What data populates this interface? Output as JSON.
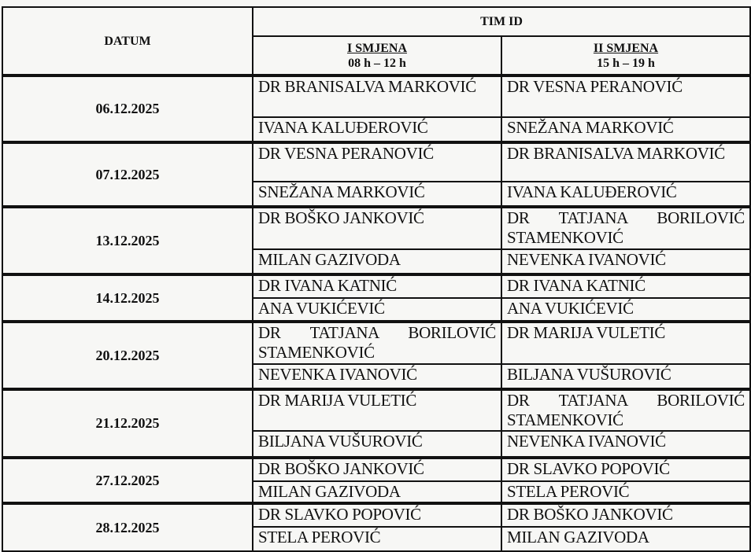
{
  "header": {
    "datum": "DATUM",
    "tim_id": "TIM ID",
    "shift1": {
      "name": "I SMJENA",
      "hours": "08 h – 12 h"
    },
    "shift2": {
      "name": "II SMJENA",
      "hours": "15 h – 19 h"
    }
  },
  "rows": [
    {
      "date": "06.12.2025",
      "shift1": [
        "DR BRANISALVA MARKOVIĆ",
        "IVANA KALUĐEROVIĆ"
      ],
      "shift2": [
        "DR VESNA PERANOVIĆ",
        "SNEŽANA MARKOVIĆ"
      ]
    },
    {
      "date": "07.12.2025",
      "shift1": [
        "DR VESNA PERANOVIĆ",
        "SNEŽANA MARKOVIĆ"
      ],
      "shift2": [
        "DR BRANISALVA MARKOVIĆ",
        "IVANA KALUĐEROVIĆ"
      ]
    },
    {
      "date": "13.12.2025",
      "shift1": [
        "DR BOŠKO JANKOVIĆ",
        "MILAN GAZIVODA"
      ],
      "shift2": [
        "DR TATJANA BORILOVIĆ STAMENKOVIĆ",
        "NEVENKA IVANOVIĆ"
      ]
    },
    {
      "date": "14.12.2025",
      "shift1": [
        "DR IVANA KATNIĆ",
        "ANA VUKIĆEVIĆ"
      ],
      "shift2": [
        "DR IVANA KATNIĆ",
        "ANA VUKIĆEVIĆ"
      ]
    },
    {
      "date": "20.12.2025",
      "shift1": [
        "DR TATJANA BORILOVIĆ STAMENKOVIĆ",
        "NEVENKA IVANOVIĆ"
      ],
      "shift2": [
        "DR MARIJA VULETIĆ",
        "BILJANA VUŠUROVIĆ"
      ]
    },
    {
      "date": "21.12.2025",
      "shift1": [
        "DR MARIJA VULETIĆ",
        "BILJANA VUŠUROVIĆ"
      ],
      "shift2": [
        "DR TATJANA BORILOVIĆ STAMENKOVIĆ",
        "NEVENKA IVANOVIĆ"
      ]
    },
    {
      "date": "27.12.2025",
      "shift1": [
        "DR BOŠKO JANKOVIĆ",
        "MILAN GAZIVODA"
      ],
      "shift2": [
        "DR SLAVKO POPOVIĆ",
        "STELA PEROVIĆ"
      ]
    },
    {
      "date": "28.12.2025",
      "shift1": [
        "DR SLAVKO POPOVIĆ",
        "STELA PEROVIĆ"
      ],
      "shift2": [
        "DR BOŠKO JANKOVIĆ",
        "MILAN GAZIVODA"
      ]
    }
  ]
}
